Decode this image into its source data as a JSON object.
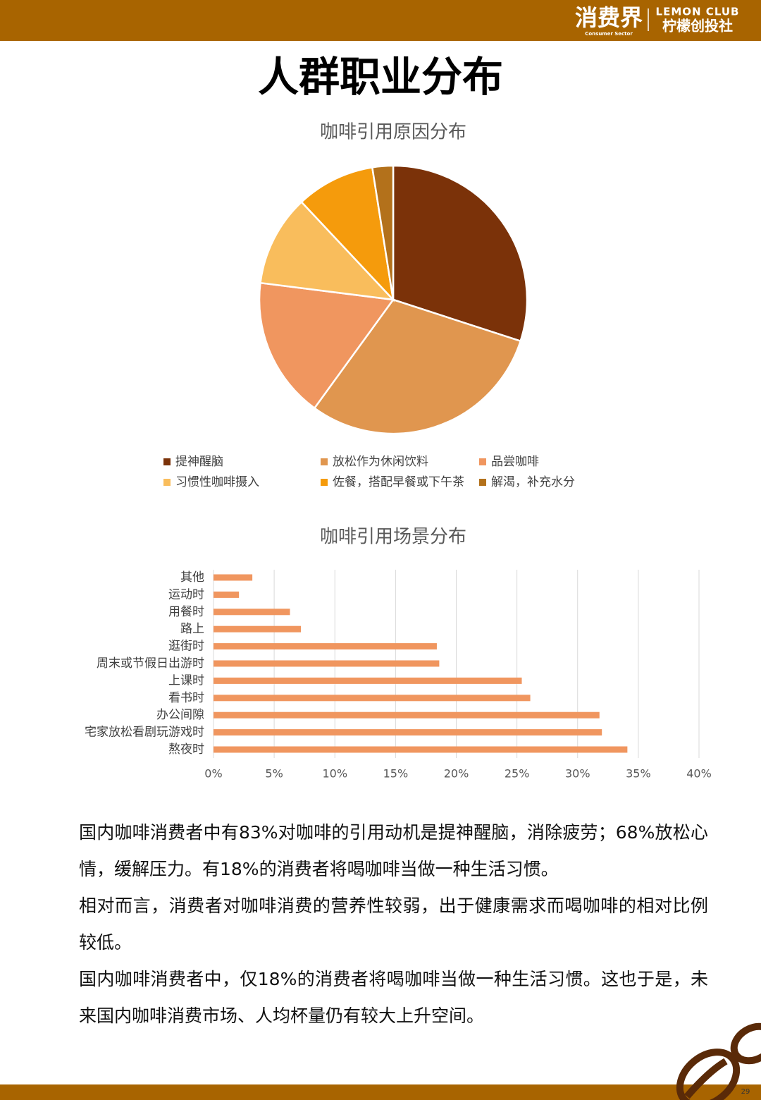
{
  "header": {
    "logo": "消费界",
    "logo_sub": "Consumer Sector",
    "club": "LEMON CLUB",
    "club_cn": "柠檬创投社"
  },
  "title": "人群职业分布",
  "chart_data": [
    {
      "type": "pie",
      "title": "咖啡引用原因分布",
      "categories": [
        "提神醒脑",
        "放松作为休闲饮料",
        "品尝咖啡",
        "习惯性咖啡摄入",
        "佐餐，搭配早餐或下午茶",
        "解渴，补充水分"
      ],
      "values": [
        30,
        30,
        17,
        11,
        9.5,
        2.5
      ],
      "colors": [
        "#7b3209",
        "#e0964f",
        "#f0965f",
        "#f9bd5c",
        "#f59b0c",
        "#b3711b"
      ],
      "legend": "bottom"
    },
    {
      "type": "hbar",
      "title": "咖啡引用场景分布",
      "categories": [
        "其他",
        "运动时",
        "用餐时",
        "路上",
        "逛街时",
        "周末或节假日出游时",
        "上课时",
        "看书时",
        "办公间隙",
        "宅家放松看剧玩游戏时",
        "熬夜时"
      ],
      "values": [
        3.2,
        2.1,
        6.3,
        7.2,
        18.4,
        18.6,
        25.4,
        26.1,
        31.8,
        32.0,
        34.1
      ],
      "color": "#f0965f",
      "xlim": [
        0,
        40
      ],
      "xticks": [
        {
          "value": 0,
          "label": "0%"
        },
        {
          "value": 5,
          "label": "5%"
        },
        {
          "value": 10,
          "label": "10%"
        },
        {
          "value": 15,
          "label": "15%"
        },
        {
          "value": 20,
          "label": "20%"
        },
        {
          "value": 25,
          "label": "25%"
        },
        {
          "value": 30,
          "label": "30%"
        },
        {
          "value": 35,
          "label": "35%"
        },
        {
          "value": 40,
          "label": "40%"
        }
      ],
      "grid": true
    }
  ],
  "paragraphs": [
    "国内咖啡消费者中有83%对咖啡的引用动机是提神醒脑，消除疲劳；68%放松心情，缓解压力。有18%的消费者将喝咖啡当做一种生活习惯。",
    "相对而言，消费者对咖啡消费的营养性较弱，出于健康需求而喝咖啡的相对比例较低。",
    "国内咖啡消费者中，仅18%的消费者将喝咖啡当做一种生活习惯。这也于是，未来国内咖啡消费市场、人均杯量仍有较大上升空间。"
  ],
  "page_number": "29"
}
